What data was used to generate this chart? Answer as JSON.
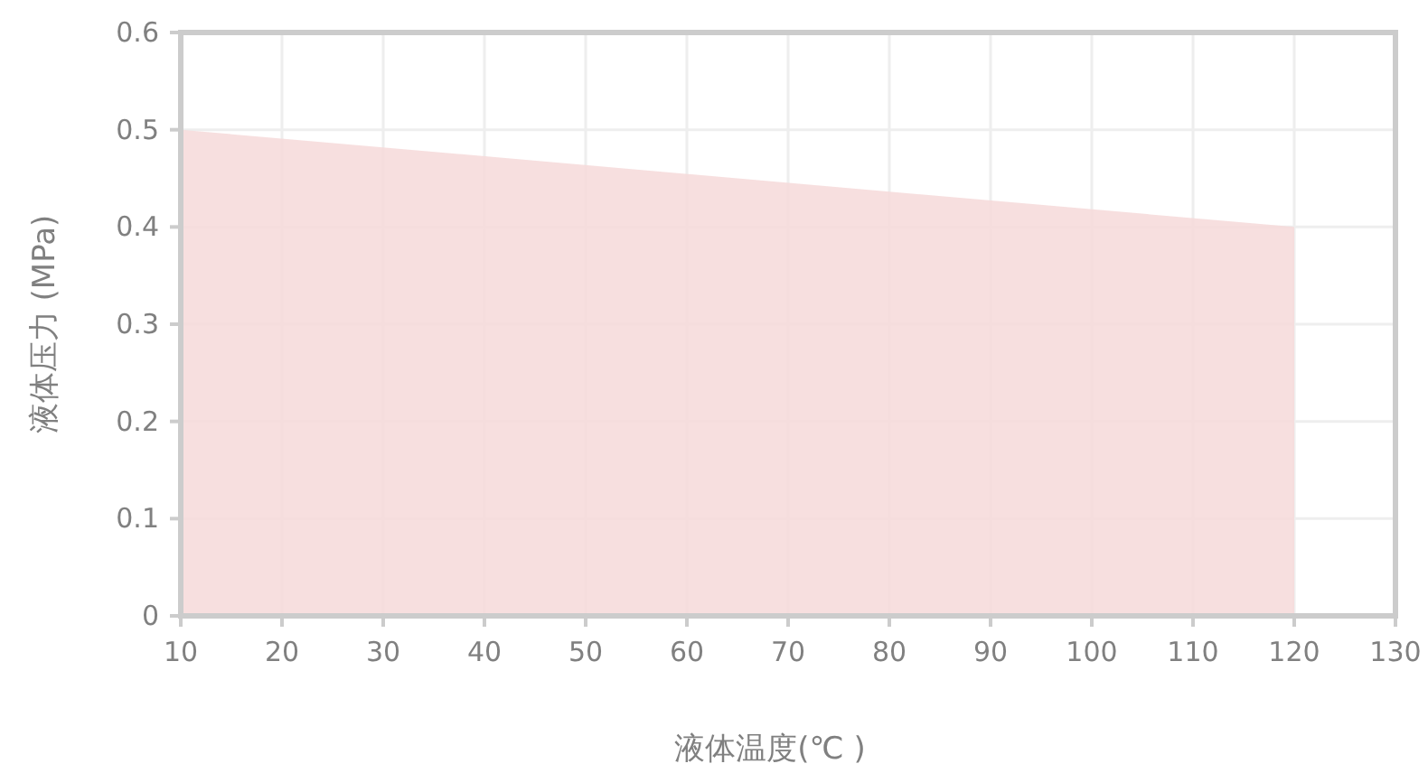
{
  "chart_data": {
    "type": "area",
    "xlabel": "液体温度(℃ )",
    "ylabel": "液体压力 (MPa)",
    "x": [
      10,
      120
    ],
    "values": [
      0.5,
      0.4
    ],
    "color": "#f6d9d9",
    "xlim": [
      10,
      130
    ],
    "xticks": [
      10,
      20,
      30,
      40,
      50,
      60,
      70,
      80,
      90,
      100,
      110,
      120,
      130
    ],
    "ylim": [
      0,
      0.6
    ],
    "yticks": [
      0,
      0.1,
      0.2,
      0.3,
      0.4,
      0.5,
      0.6
    ],
    "grid": true
  }
}
